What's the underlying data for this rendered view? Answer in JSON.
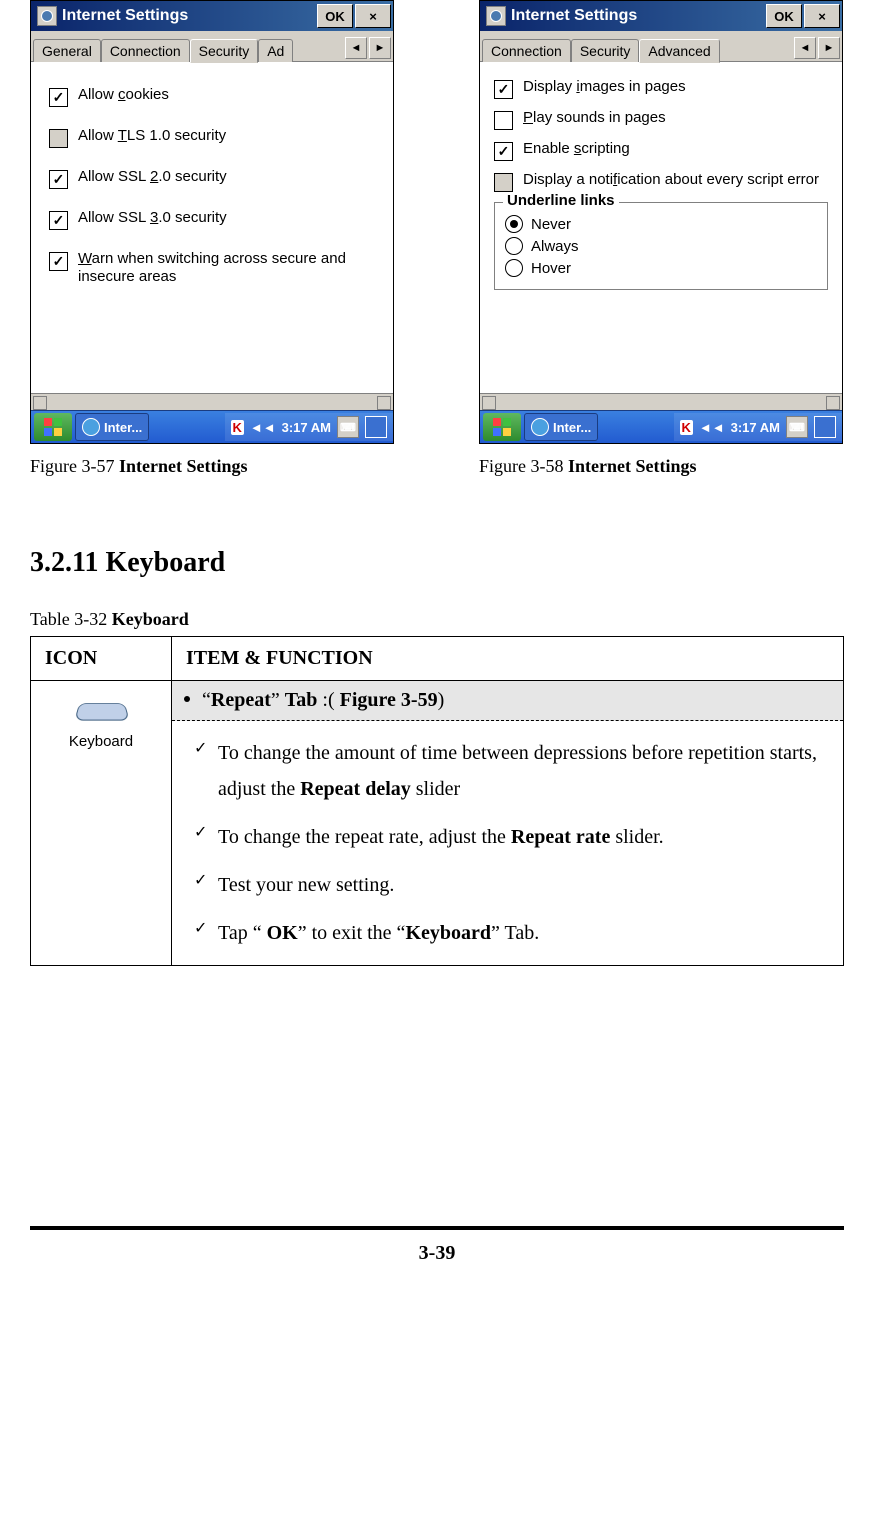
{
  "figure57": {
    "window_title": "Internet Settings",
    "ok_label": "OK",
    "close_symbol": "×",
    "tabs": [
      "General",
      "Connection",
      "Security",
      "Ad"
    ],
    "active_tab_index": 2,
    "checkboxes": [
      {
        "checked": true,
        "label_pre": "Allow ",
        "ul": "c",
        "label_post": "ookies"
      },
      {
        "checked": false,
        "disabled": true,
        "label_pre": "Allow ",
        "ul": "T",
        "label_post": "LS 1.0 security"
      },
      {
        "checked": true,
        "label_pre": "Allow SSL ",
        "ul": "2",
        "label_post": ".0 security"
      },
      {
        "checked": true,
        "label_pre": "Allow SSL ",
        "ul": "3",
        "label_post": ".0 security"
      },
      {
        "checked": true,
        "label_pre": "",
        "ul": "W",
        "label_post": "arn when switching across secure and insecure areas"
      }
    ],
    "task_button": "Inter...",
    "time": "3:17 AM",
    "caption_prefix": "Figure 3-57 ",
    "caption_bold": "Internet Settings"
  },
  "figure58": {
    "window_title": "Internet Settings",
    "ok_label": "OK",
    "close_symbol": "×",
    "tabs": [
      "Connection",
      "Security",
      "Advanced"
    ],
    "active_tab_index": 2,
    "checkboxes": [
      {
        "checked": true,
        "label_pre": "Display ",
        "ul": "i",
        "label_post": "mages in pages"
      },
      {
        "checked": false,
        "label_pre": "",
        "ul": "P",
        "label_post": "lay sounds in pages"
      },
      {
        "checked": true,
        "label_pre": "Enable ",
        "ul": "s",
        "label_post": "cripting"
      },
      {
        "checked": false,
        "disabled": true,
        "label_pre": "Display a noti",
        "ul": "f",
        "label_post": "ication about every script error"
      }
    ],
    "group_label": "Underline links",
    "radios": [
      {
        "selected": true,
        "ul": "N",
        "rest": "ever"
      },
      {
        "selected": false,
        "ul": "A",
        "rest": "lways"
      },
      {
        "selected": false,
        "ul": "H",
        "rest": "over"
      }
    ],
    "task_button": "Inter...",
    "time": "3:17 AM",
    "caption_prefix": "Figure 3-58 ",
    "caption_bold": "Internet Settings"
  },
  "section_heading": "3.2.11 Keyboard",
  "table_caption_prefix": "Table 3-32 ",
  "table_caption_bold": "Keyboard",
  "table": {
    "col1_header": "ICON",
    "col2_header": "ITEM & FUNCTION",
    "icon_label": "Keyboard",
    "tab_row_html": "“<b>Repeat</b>” <b>Tab</b> :( <b>Figure 3-59</b>)",
    "items": [
      "To change the amount of time between depressions before repetition starts, adjust the <b>Repeat delay</b> slider",
      "To change the repeat rate, adjust the <b>Repeat rate</b> slider.",
      "Test your new setting.",
      "Tap “ <b>OK</b>” to exit the “<b>Keyboard</b>” Tab."
    ]
  },
  "page_number": "3-39",
  "colors": {
    "titlebar_start": "#0a246a",
    "titlebar_end": "#3a6ea5",
    "win_background": "#d4d0c8",
    "taskbar_top": "#3a80e0",
    "taskbar_bottom": "#225bd0",
    "start_green_top": "#5fb85f",
    "start_green_bottom": "#2e8b2e",
    "row_a_bg": "#e6e6e6"
  }
}
